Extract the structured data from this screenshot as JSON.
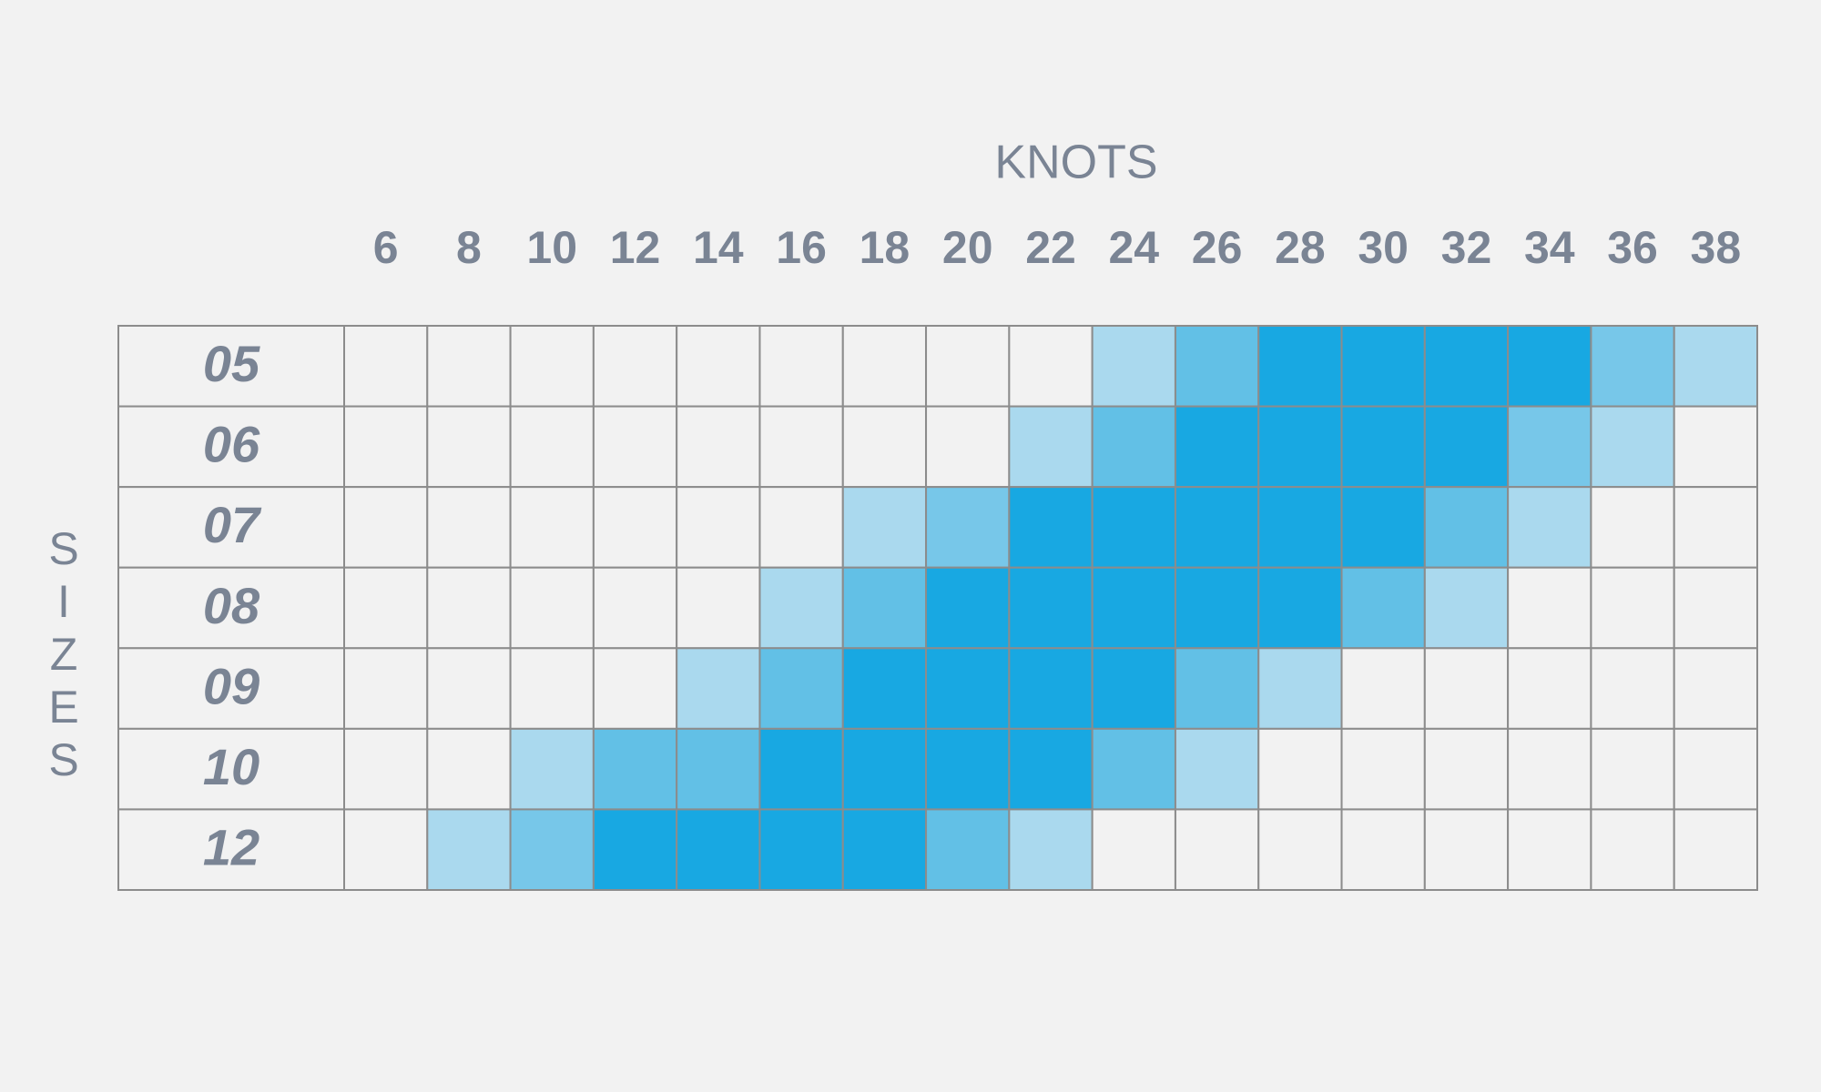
{
  "chart_data": {
    "type": "heatmap",
    "x_label": "KNOTS",
    "y_label": "SIZES",
    "x_categories": [
      "6",
      "8",
      "10",
      "12",
      "14",
      "16",
      "18",
      "20",
      "22",
      "24",
      "26",
      "28",
      "30",
      "32",
      "34",
      "36",
      "38"
    ],
    "y_categories": [
      "05",
      "06",
      "07",
      "08",
      "09",
      "10",
      "12"
    ],
    "values": [
      [
        0,
        0,
        0,
        0,
        0,
        0,
        0,
        0,
        0,
        1,
        3,
        4,
        4,
        4,
        4,
        2,
        1
      ],
      [
        0,
        0,
        0,
        0,
        0,
        0,
        0,
        0,
        1,
        3,
        4,
        4,
        4,
        4,
        2,
        1,
        0
      ],
      [
        0,
        0,
        0,
        0,
        0,
        0,
        1,
        2,
        4,
        4,
        4,
        4,
        4,
        3,
        1,
        0,
        0
      ],
      [
        0,
        0,
        0,
        0,
        0,
        1,
        3,
        4,
        4,
        4,
        4,
        4,
        3,
        1,
        0,
        0,
        0
      ],
      [
        0,
        0,
        0,
        0,
        1,
        3,
        4,
        4,
        4,
        4,
        3,
        1,
        0,
        0,
        0,
        0,
        0
      ],
      [
        0,
        0,
        1,
        3,
        3,
        4,
        4,
        4,
        4,
        3,
        1,
        0,
        0,
        0,
        0,
        0,
        0
      ],
      [
        0,
        1,
        2,
        4,
        4,
        4,
        4,
        3,
        1,
        0,
        0,
        0,
        0,
        0,
        0,
        0,
        0
      ]
    ],
    "colors": [
      "#f2f2f2",
      "#aad9ee",
      "#77c7e9",
      "#62c0e6",
      "#18a8e2"
    ]
  }
}
